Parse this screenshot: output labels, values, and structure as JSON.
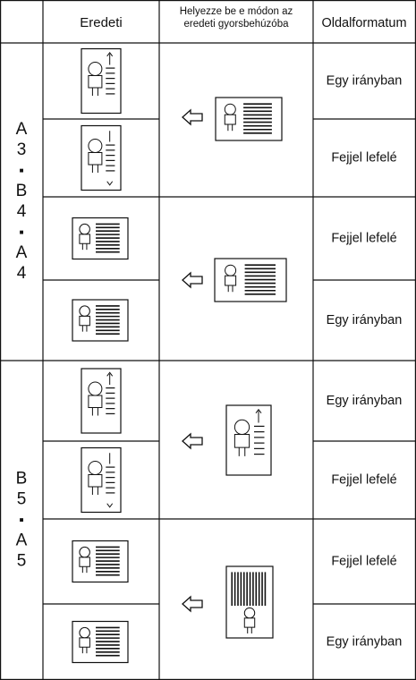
{
  "table": {
    "header": {
      "original": "Eredeti",
      "insert": [
        "Helyezze be e módon az",
        "eredeti gyorsbehúzóba"
      ],
      "orientation": "Oldalformatum"
    },
    "groups": [
      {
        "label": [
          "A",
          "3",
          "■",
          "B",
          "4",
          "■",
          "A",
          "4"
        ],
        "rows": [
          "Egy irányban",
          "Fejjel lefelé",
          "Fejjel lefelé",
          "Egy irányban"
        ]
      },
      {
        "label": [
          "B",
          "5",
          "■",
          "A",
          "5"
        ],
        "rows": [
          "Egy irányban",
          "Fejjel lefelé",
          "Fejjel lefelé",
          "Egy irányban"
        ]
      }
    ]
  }
}
